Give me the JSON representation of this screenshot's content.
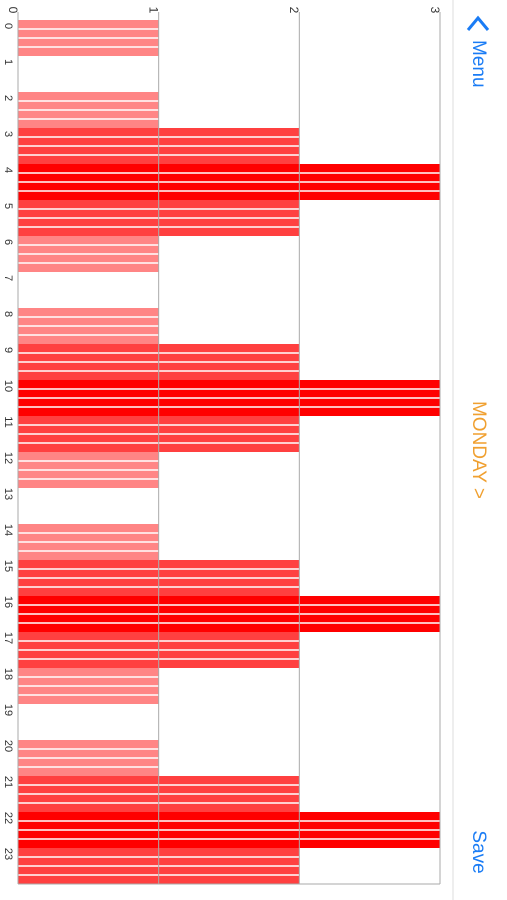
{
  "header": {
    "menu": "Menu",
    "day": "MONDAY >",
    "save": "Save"
  },
  "chart_data": {
    "type": "bar",
    "orientation": "horizontal",
    "categories": [
      "0",
      "1",
      "2",
      "3",
      "4",
      "5",
      "6",
      "7",
      "8",
      "9",
      "10",
      "11",
      "12",
      "13",
      "14",
      "15",
      "16",
      "17",
      "18",
      "19",
      "20",
      "21",
      "22",
      "23"
    ],
    "values": [
      1,
      0,
      1,
      2,
      3,
      2,
      1,
      0,
      1,
      2,
      3,
      2,
      1,
      0,
      1,
      2,
      3,
      2,
      1,
      0,
      1,
      2,
      3,
      2
    ],
    "level_colors": [
      "#ffffff",
      "#ff8585",
      "#ff4040",
      "#ff0000"
    ],
    "xlim": [
      0,
      3
    ],
    "xticks": [
      0,
      1,
      2,
      3
    ],
    "grid": true
  }
}
